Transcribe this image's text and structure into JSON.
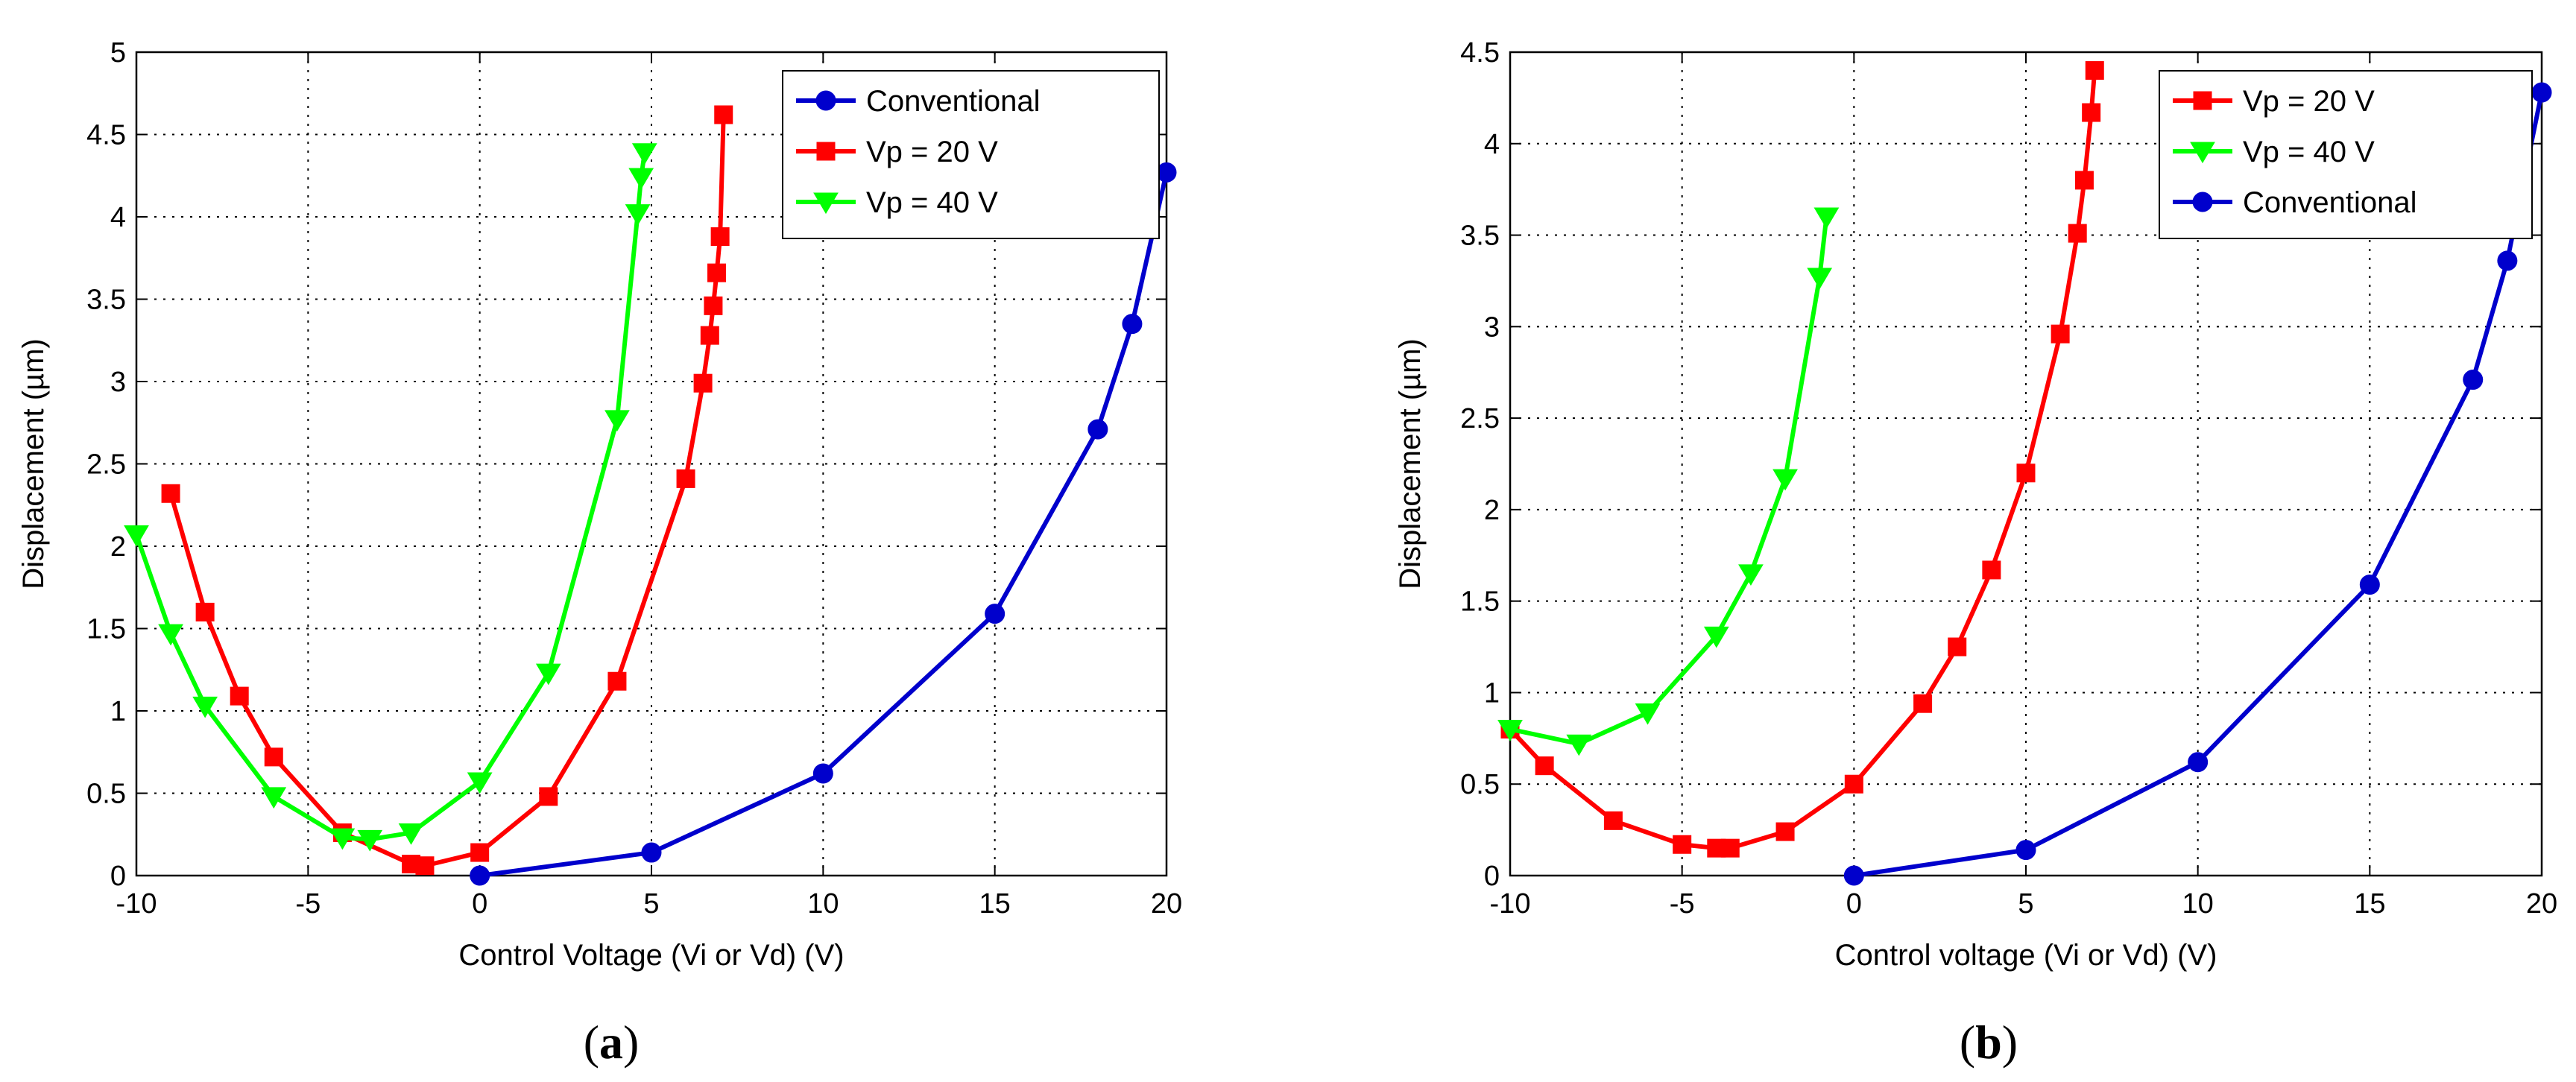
{
  "chart_data": [
    {
      "type": "line",
      "panel_label": {
        "open": "(",
        "letter": "a",
        "close": ")"
      },
      "xlabel": "Control Voltage (Vi or Vd) (V)",
      "ylabel": "Displacement (µm)",
      "xlim": [
        -10,
        20
      ],
      "ylim": [
        0,
        5
      ],
      "xticks": [
        "-10",
        "-5",
        "0",
        "5",
        "10",
        "15",
        "20"
      ],
      "yticks": [
        "0",
        "0.5",
        "1",
        "1.5",
        "2",
        "2.5",
        "3",
        "3.5",
        "4",
        "4.5",
        "5"
      ],
      "grid": true,
      "legend_position": "top-right",
      "series": [
        {
          "name": "Conventional",
          "color": "#0000cc",
          "marker": "circle",
          "x": [
            0,
            5,
            10,
            15,
            18,
            19,
            20
          ],
          "y": [
            0,
            0.14,
            0.62,
            1.59,
            2.71,
            3.35,
            4.27
          ]
        },
        {
          "name": "Vp = 20 V",
          "color": "#ff0000",
          "marker": "square",
          "x": [
            -9,
            -8,
            -7,
            -6,
            -4,
            -2,
            -1.6,
            0,
            2,
            4,
            6,
            6.5,
            6.7,
            6.8,
            6.9,
            7,
            7.1
          ],
          "y": [
            2.32,
            1.6,
            1.09,
            0.72,
            0.26,
            0.07,
            0.06,
            0.14,
            0.48,
            1.18,
            2.41,
            2.99,
            3.28,
            3.46,
            3.66,
            3.88,
            4.62
          ]
        },
        {
          "name": "Vp = 40 V",
          "color": "#00ff00",
          "marker": "triangle-down",
          "x": [
            -10,
            -9,
            -8,
            -6,
            -4,
            -3.2,
            -2,
            0,
            2,
            4,
            4.6,
            4.7,
            4.8
          ],
          "y": [
            2.07,
            1.47,
            1.03,
            0.48,
            0.23,
            0.22,
            0.26,
            0.57,
            1.23,
            2.77,
            4.02,
            4.24,
            4.39
          ]
        }
      ]
    },
    {
      "type": "line",
      "panel_label": {
        "open": "(",
        "letter": "b",
        "close": ")"
      },
      "xlabel": "Control voltage (Vi or Vd) (V)",
      "ylabel": "Displacement (µm)",
      "xlim": [
        -10,
        20
      ],
      "ylim": [
        0,
        4.5
      ],
      "xticks": [
        "-10",
        "-5",
        "0",
        "5",
        "10",
        "15",
        "20"
      ],
      "yticks": [
        "0",
        "0.5",
        "1",
        "1.5",
        "2",
        "2.5",
        "3",
        "3.5",
        "4",
        "4.5"
      ],
      "grid": true,
      "legend_position": "top-right",
      "series": [
        {
          "name": "Vp = 20 V",
          "color": "#ff0000",
          "marker": "square",
          "x": [
            -10,
            -9,
            -7,
            -5,
            -4,
            -3.6,
            -2,
            0,
            2,
            3,
            4,
            5,
            6,
            6.5,
            6.7,
            6.9,
            7
          ],
          "y": [
            0.8,
            0.6,
            0.3,
            0.17,
            0.15,
            0.15,
            0.24,
            0.5,
            0.94,
            1.25,
            1.67,
            2.2,
            2.96,
            3.51,
            3.8,
            4.17,
            4.4
          ]
        },
        {
          "name": "Vp = 40 V",
          "color": "#00ff00",
          "marker": "triangle-down",
          "x": [
            -10,
            -8,
            -6,
            -4,
            -3,
            -2,
            -1,
            -0.8
          ],
          "y": [
            0.8,
            0.72,
            0.89,
            1.31,
            1.65,
            2.17,
            3.27,
            3.6
          ]
        },
        {
          "name": "Conventional",
          "color": "#0000cc",
          "marker": "circle",
          "x": [
            0,
            5,
            10,
            15,
            18,
            19,
            20
          ],
          "y": [
            0,
            0.14,
            0.62,
            1.59,
            2.71,
            3.36,
            4.28
          ]
        }
      ]
    }
  ]
}
